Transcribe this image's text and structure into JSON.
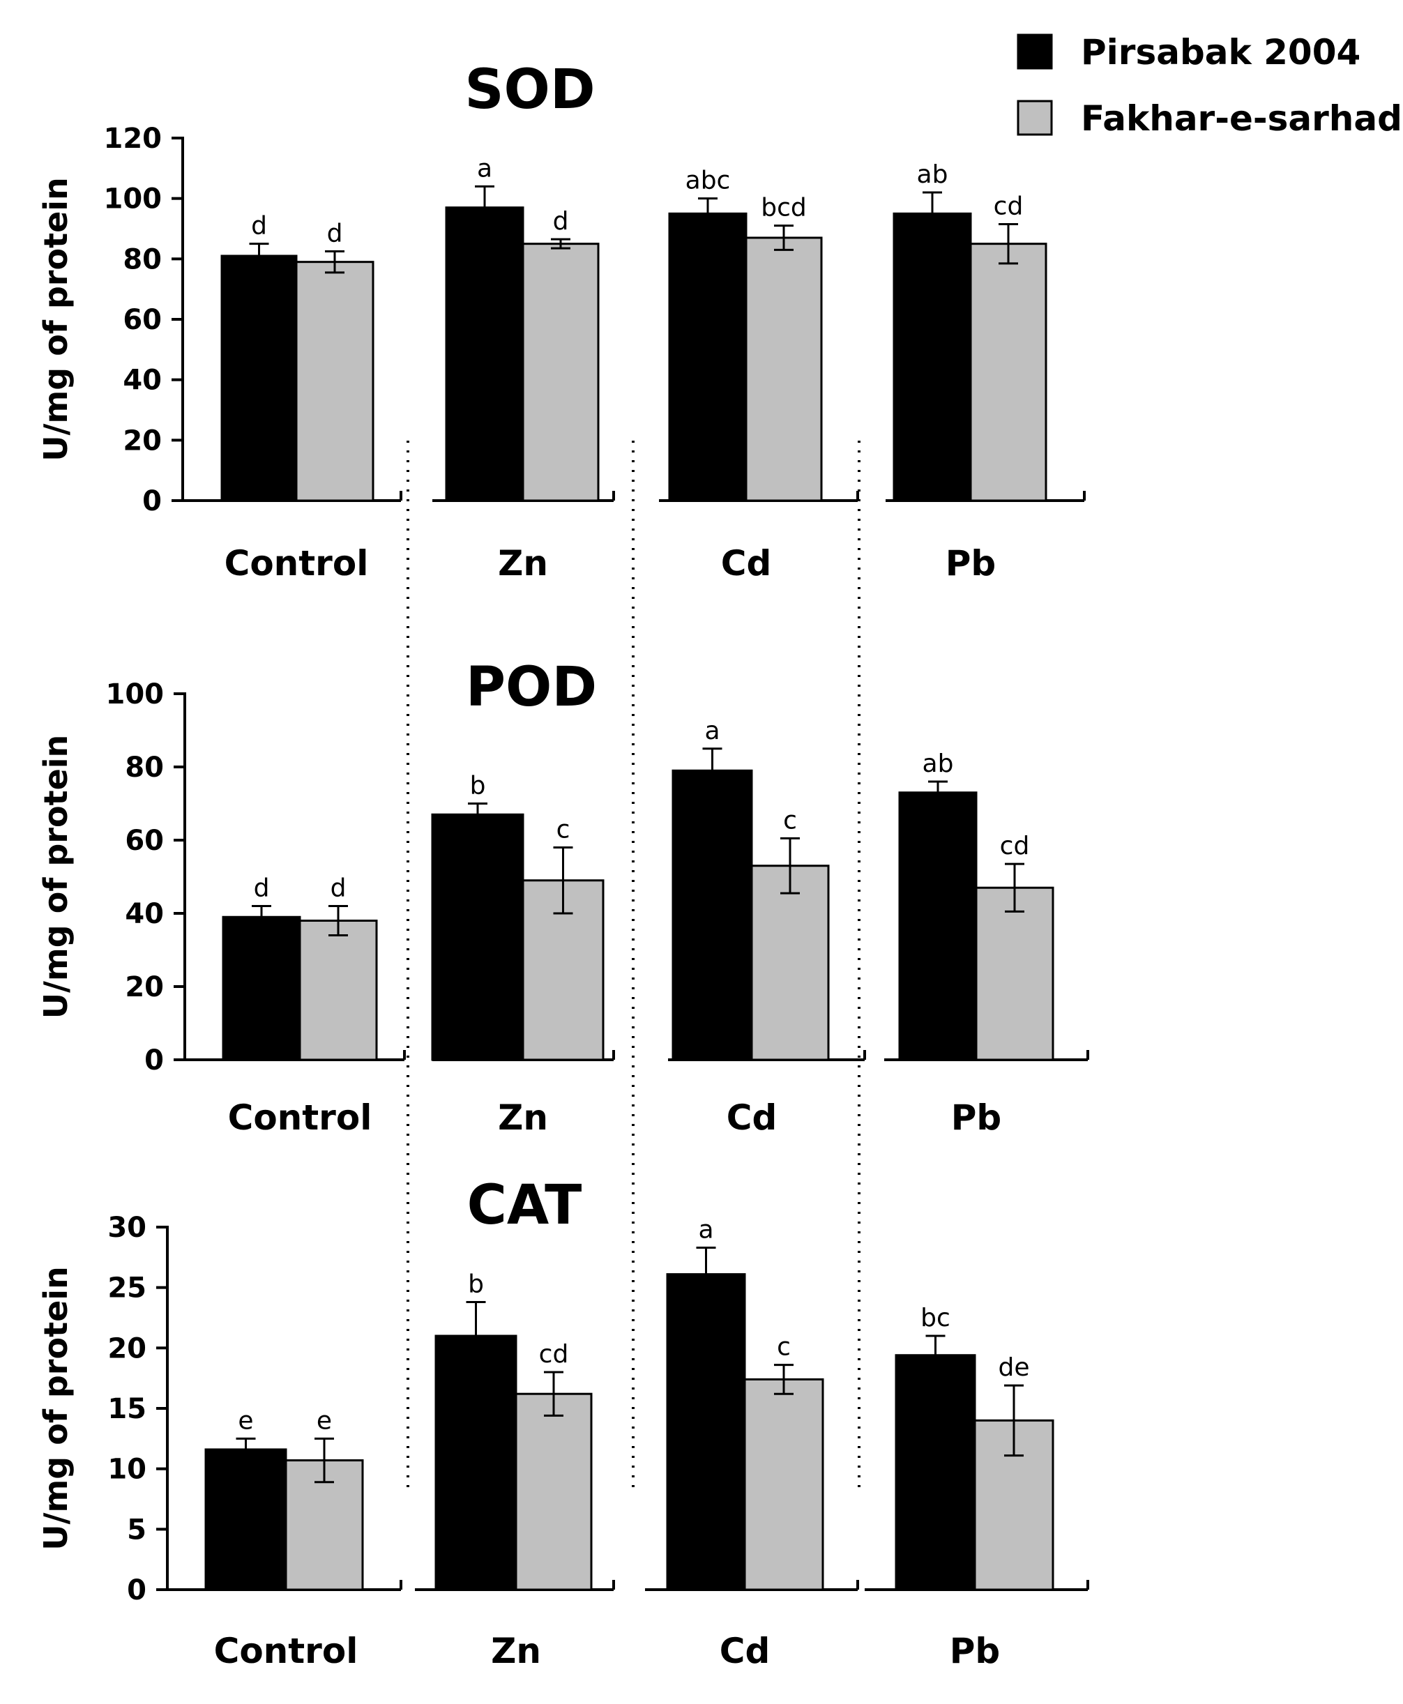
{
  "legend": {
    "position": "top-right",
    "entries": [
      {
        "name": "Pirsabak 2004",
        "color": "#000000"
      },
      {
        "name": "Fakhar-e-sarhad",
        "color": "#c0c0c0"
      }
    ]
  },
  "chart_data": [
    {
      "type": "bar",
      "title": "SOD",
      "ylabel": "U/mg of protein",
      "ylim": [
        0,
        120
      ],
      "yticks": [
        "0",
        "20",
        "40",
        "60",
        "80",
        "100",
        "120"
      ],
      "categories": [
        "Control",
        "Zn",
        "Cd",
        "Pb"
      ],
      "series": [
        {
          "name": "Pirsabak 2004",
          "values": [
            81,
            97,
            95,
            95
          ],
          "errors": [
            4,
            7,
            5,
            7
          ],
          "letters": [
            "d",
            "a",
            "abc",
            "ab"
          ]
        },
        {
          "name": "Fakhar-e-sarhad",
          "values": [
            79,
            85,
            87,
            85
          ],
          "errors": [
            3.5,
            1.5,
            4,
            6.5
          ],
          "letters": [
            "d",
            "d",
            "bcd",
            "cd"
          ]
        }
      ]
    },
    {
      "type": "bar",
      "title": "POD",
      "ylabel": "U/mg of protein",
      "ylim": [
        0,
        100
      ],
      "yticks": [
        "0",
        "20",
        "40",
        "60",
        "80",
        "100"
      ],
      "categories": [
        "Control",
        "Zn",
        "Cd",
        "Pb"
      ],
      "series": [
        {
          "name": "Pirsabak 2004",
          "values": [
            39,
            67,
            79,
            73
          ],
          "errors": [
            3,
            3,
            6,
            3
          ],
          "letters": [
            "d",
            "b",
            "a",
            "ab"
          ]
        },
        {
          "name": "Fakhar-e-sarhad",
          "values": [
            38,
            49,
            53,
            47
          ],
          "errors": [
            4,
            9,
            7.5,
            6.5
          ],
          "letters": [
            "d",
            "c",
            "c",
            "cd"
          ]
        }
      ]
    },
    {
      "type": "bar",
      "title": "CAT",
      "ylabel": "U/mg of protein",
      "ylim": [
        0,
        30
      ],
      "yticks": [
        "0",
        "5",
        "10",
        "15",
        "20",
        "25",
        "30"
      ],
      "categories": [
        "Control",
        "Zn",
        "Cd",
        "Pb"
      ],
      "series": [
        {
          "name": "Pirsabak 2004",
          "values": [
            11.6,
            21,
            26.1,
            19.4
          ],
          "errors": [
            0.9,
            2.8,
            2.2,
            1.6
          ],
          "letters": [
            "e",
            "b",
            "a",
            "bc"
          ]
        },
        {
          "name": "Fakhar-e-sarhad",
          "values": [
            10.7,
            16.2,
            17.4,
            14
          ],
          "errors": [
            1.8,
            1.8,
            1.2,
            2.9
          ],
          "letters": [
            "e",
            "cd",
            "c",
            "de"
          ]
        }
      ]
    }
  ]
}
